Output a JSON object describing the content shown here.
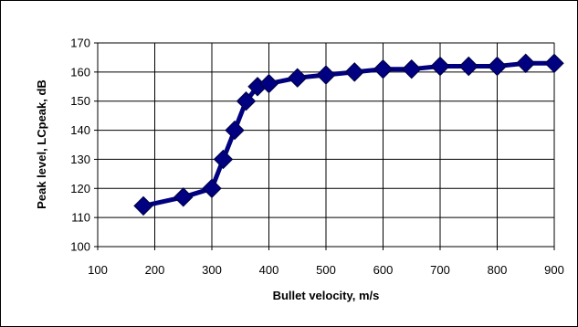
{
  "chart_data": {
    "type": "line",
    "xlabel": "Bullet velocity, m/s",
    "ylabel": "Peak level, LCpeak, dB",
    "xlim": [
      100,
      900
    ],
    "ylim": [
      100,
      170
    ],
    "xticks": [
      100,
      200,
      300,
      400,
      500,
      600,
      700,
      800,
      900
    ],
    "yticks": [
      100,
      110,
      120,
      130,
      140,
      150,
      160,
      170
    ],
    "grid": true,
    "legend": "none",
    "series": [
      {
        "color": "#000080",
        "marker": "diamond",
        "x": [
          180,
          250,
          300,
          320,
          340,
          360,
          380,
          400,
          450,
          500,
          550,
          600,
          650,
          700,
          750,
          800,
          850,
          900
        ],
        "y": [
          114,
          117,
          120,
          130,
          140,
          150,
          155,
          156,
          158,
          159,
          160,
          161,
          161,
          162,
          162,
          162,
          163,
          163
        ]
      }
    ]
  }
}
